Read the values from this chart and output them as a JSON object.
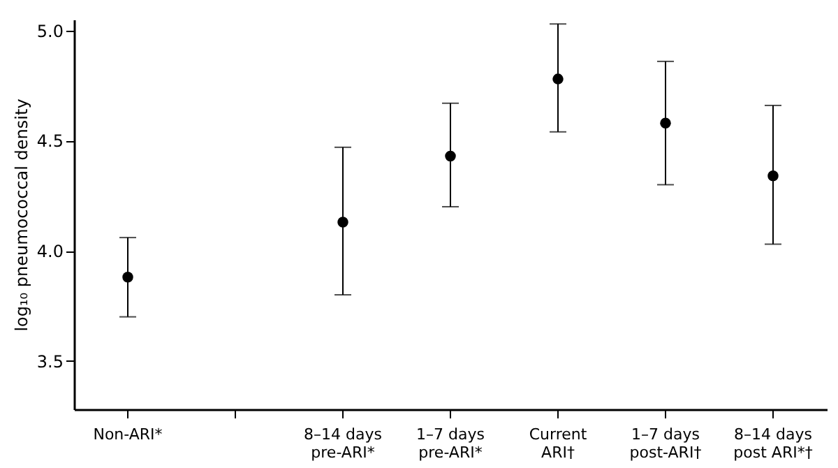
{
  "chart_data": {
    "type": "scatter",
    "ylabel": "log₁₀ pneumococcal density",
    "categories": [
      "Non-ARI*",
      null,
      "8–14 days pre-ARI*",
      "1–7 days pre-ARI*",
      "Current ARI†",
      "1–7 days post-ARI†",
      "8–14 days post ARI*†"
    ],
    "values": [
      3.88,
      null,
      4.13,
      4.43,
      4.78,
      4.58,
      4.34
    ],
    "errors": [
      [
        3.7,
        4.06
      ],
      null,
      [
        3.8,
        4.47
      ],
      [
        4.2,
        4.67
      ],
      [
        4.54,
        5.03
      ],
      [
        4.3,
        4.86
      ],
      [
        4.03,
        4.66
      ]
    ],
    "color": "#000000",
    "ylim": [
      3.28,
      5.05
    ],
    "yticks": [
      3.5,
      {
        "value": 4,
        "label": "4.0"
      },
      4.5,
      {
        "value": 5,
        "label": "5.0"
      }
    ],
    "grid": false
  }
}
